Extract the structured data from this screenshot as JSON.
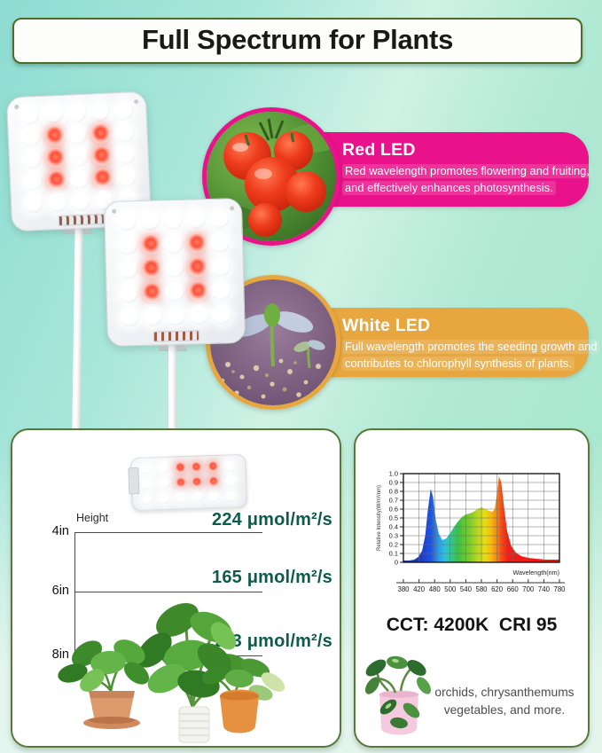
{
  "title": "Full Spectrum for Plants",
  "features": {
    "red_led": {
      "heading": "Red LED",
      "line1": "Red wavelength promotes flowering and fruiting,",
      "line2": "and effectively enhances photosynthesis.",
      "box_color": "#e9128a"
    },
    "white_led": {
      "heading": "White LED",
      "line1": "Full wavelength promotes the seeding growth and",
      "line2": "contributes to chlorophyll synthesis of plants.",
      "box_color": "#e7a73e"
    }
  },
  "height_card": {
    "axis_label": "Height",
    "rows": [
      {
        "height": "4in",
        "value": "224 μmol/m²/s"
      },
      {
        "height": "6in",
        "value": "165 μmol/m²/s"
      },
      {
        "height": "8in",
        "value": "123 μmol/m²/s"
      }
    ],
    "value_color": "#0d5c4b"
  },
  "spectrum_card": {
    "cct_cri": "CCT: 4200K  CRI 95",
    "note_line1": "orchids, chrysanthemums",
    "note_line2": "vegetables, and more."
  },
  "led_panel": {
    "rows": 5,
    "cols": 5,
    "red_positions": [
      [
        1,
        1
      ],
      [
        1,
        3
      ],
      [
        2,
        1
      ],
      [
        2,
        3
      ],
      [
        3,
        1
      ],
      [
        3,
        3
      ]
    ]
  },
  "mini_panel": {
    "rows": 3,
    "cols": 6,
    "red_positions": [
      [
        0,
        2
      ],
      [
        0,
        3
      ],
      [
        0,
        4
      ],
      [
        1,
        2
      ],
      [
        1,
        3
      ],
      [
        1,
        4
      ]
    ]
  },
  "colors": {
    "card_border": "#56793a",
    "title_border": "#4e6b28",
    "background_teal": "#8edcd2",
    "background_mint": "#a6e6cb"
  },
  "chart_data": {
    "type": "area",
    "title": "",
    "xlabel": "Wavelength(nm)",
    "ylabel": "Relative Intensity(W/m²/nm)",
    "x_tick_labels": [
      "380",
      "420",
      "480",
      "500",
      "540",
      "580",
      "620",
      "660",
      "700",
      "740",
      "780"
    ],
    "y_tick_labels": [
      "1.0",
      "0.9",
      "0.8",
      "0.7",
      "0.6",
      "0.5",
      "0.4",
      "0.3",
      "0.2",
      "0.1",
      "0"
    ],
    "xlim": [
      380,
      780
    ],
    "ylim": [
      0,
      1.0
    ],
    "grid": true,
    "legend": false,
    "x": [
      380,
      395,
      408,
      418,
      428,
      436,
      443,
      450,
      456,
      463,
      471,
      480,
      490,
      500,
      510,
      520,
      530,
      540,
      550,
      560,
      570,
      580,
      590,
      600,
      608,
      614,
      619,
      625,
      631,
      638,
      646,
      656,
      668,
      682,
      700,
      720,
      745,
      780
    ],
    "y": [
      0.02,
      0.02,
      0.03,
      0.06,
      0.13,
      0.3,
      0.6,
      0.83,
      0.74,
      0.48,
      0.32,
      0.25,
      0.27,
      0.33,
      0.4,
      0.46,
      0.51,
      0.54,
      0.55,
      0.57,
      0.6,
      0.62,
      0.6,
      0.58,
      0.57,
      0.6,
      0.75,
      0.97,
      0.9,
      0.62,
      0.35,
      0.19,
      0.11,
      0.07,
      0.05,
      0.04,
      0.03,
      0.03
    ]
  }
}
